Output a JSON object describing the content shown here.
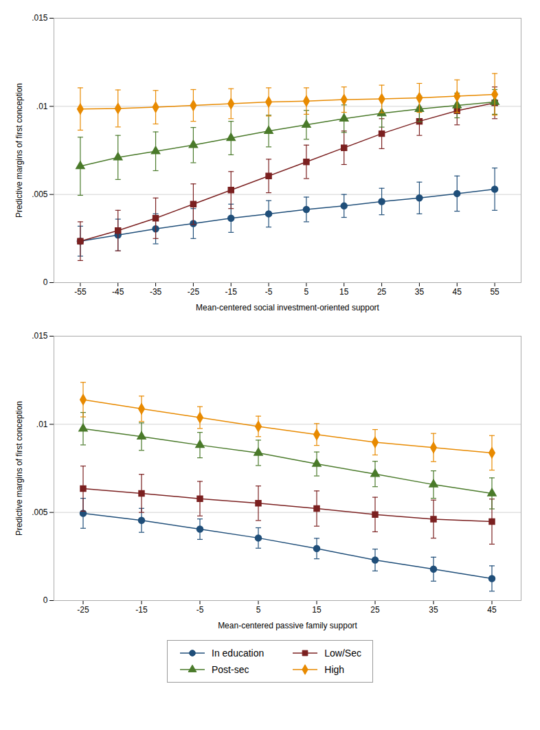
{
  "chart_data": [
    {
      "type": "line",
      "xlabel": "Mean-centered social investment-oriented support",
      "ylabel": "Predictive margins of first conception",
      "xlim": [
        -62,
        62
      ],
      "ylim": [
        0,
        0.015
      ],
      "xticks": [
        -55,
        -45,
        -35,
        -25,
        -15,
        -5,
        5,
        15,
        25,
        35,
        45,
        55
      ],
      "yticks": [
        0,
        {
          "value": 0.005,
          "label": ".005"
        },
        {
          "value": 0.01,
          "label": ".01"
        },
        {
          "value": 0.015,
          "label": ".015"
        }
      ],
      "grid": true,
      "legend": "bottom",
      "x": [
        -55,
        -45,
        -35,
        -25,
        -15,
        -5,
        5,
        15,
        25,
        35,
        45,
        55
      ],
      "series": [
        {
          "name": "In education",
          "color": "#1f4e79",
          "marker": "circle",
          "values": [
            0.00235,
            0.0027,
            0.00305,
            0.00335,
            0.00365,
            0.0039,
            0.00415,
            0.00435,
            0.0046,
            0.0048,
            0.00505,
            0.0053
          ],
          "yerr_lo": [
            0.00085,
            0.0009,
            0.00085,
            0.00085,
            0.0008,
            0.00075,
            0.0007,
            0.00065,
            0.00075,
            0.0009,
            0.001,
            0.0012
          ],
          "yerr_hi": [
            0.00085,
            0.0009,
            0.00085,
            0.00085,
            0.0008,
            0.00075,
            0.0007,
            0.00065,
            0.00075,
            0.0009,
            0.001,
            0.0012
          ]
        },
        {
          "name": "Low/Sec",
          "color": "#7b2020",
          "marker": "square",
          "values": [
            0.00235,
            0.00295,
            0.00365,
            0.00445,
            0.00525,
            0.00605,
            0.00685,
            0.00765,
            0.00845,
            0.00915,
            0.00975,
            0.0102
          ],
          "yerr_lo": [
            0.0011,
            0.00115,
            0.00115,
            0.00115,
            0.00105,
            0.00095,
            0.00095,
            0.00095,
            0.00085,
            0.0008,
            0.0008,
            0.0009
          ],
          "yerr_hi": [
            0.0011,
            0.00115,
            0.00115,
            0.00115,
            0.00105,
            0.00095,
            0.00095,
            0.00095,
            0.00085,
            0.0008,
            0.0008,
            0.0009
          ]
        },
        {
          "name": "Post-sec",
          "color": "#4a7a2a",
          "marker": "triangle",
          "values": [
            0.0066,
            0.0071,
            0.00745,
            0.0078,
            0.0082,
            0.0086,
            0.00895,
            0.0093,
            0.0096,
            0.00985,
            0.01005,
            0.01025
          ],
          "yerr_lo": [
            0.00165,
            0.00125,
            0.0011,
            0.001,
            0.00095,
            0.0009,
            0.00082,
            0.00078,
            0.00078,
            0.00073,
            0.0007,
            0.0007
          ],
          "yerr_hi": [
            0.00165,
            0.00125,
            0.0011,
            0.001,
            0.00095,
            0.0009,
            0.00082,
            0.00078,
            0.00078,
            0.00073,
            0.0007,
            0.0007
          ]
        },
        {
          "name": "High",
          "color": "#e88a00",
          "marker": "diamond",
          "values": [
            0.00985,
            0.00988,
            0.00995,
            0.01005,
            0.01015,
            0.01025,
            0.0103,
            0.01038,
            0.01042,
            0.01048,
            0.01058,
            0.01068
          ],
          "yerr_lo": [
            0.0012,
            0.00105,
            0.00095,
            0.0009,
            0.00085,
            0.0008,
            0.00075,
            0.00072,
            0.00078,
            0.00082,
            0.00092,
            0.00118
          ],
          "yerr_hi": [
            0.0012,
            0.00105,
            0.00095,
            0.0009,
            0.00085,
            0.0008,
            0.00075,
            0.00072,
            0.00078,
            0.00082,
            0.00092,
            0.00118
          ]
        }
      ]
    },
    {
      "type": "line",
      "xlabel": "Mean-centered passive family support",
      "ylabel": "Predictive margins of first conception",
      "xlim": [
        -30,
        50
      ],
      "ylim": [
        0,
        0.015
      ],
      "xticks": [
        -25,
        -15,
        -5,
        5,
        15,
        25,
        35,
        45
      ],
      "yticks": [
        0,
        {
          "value": 0.005,
          "label": ".005"
        },
        {
          "value": 0.01,
          "label": ".01"
        },
        {
          "value": 0.015,
          "label": ".015"
        }
      ],
      "grid": true,
      "legend": "bottom",
      "x": [
        -25,
        -15,
        -5,
        5,
        15,
        25,
        35,
        45
      ],
      "series": [
        {
          "name": "In education",
          "color": "#1f4e79",
          "marker": "circle",
          "values": [
            0.00495,
            0.00455,
            0.00405,
            0.00355,
            0.00295,
            0.0023,
            0.00178,
            0.00125
          ],
          "yerr_lo": [
            0.00085,
            0.00068,
            0.00058,
            0.00058,
            0.00058,
            0.00062,
            0.00068,
            0.00072
          ],
          "yerr_hi": [
            0.00085,
            0.00068,
            0.00058,
            0.00058,
            0.00058,
            0.00062,
            0.00068,
            0.00072
          ]
        },
        {
          "name": "Low/Sec",
          "color": "#7b2020",
          "marker": "square",
          "values": [
            0.00635,
            0.00608,
            0.00578,
            0.00552,
            0.00522,
            0.00488,
            0.00462,
            0.00448
          ],
          "yerr_lo": [
            0.00128,
            0.00108,
            0.00098,
            0.00098,
            0.001,
            0.00098,
            0.00108,
            0.00128
          ],
          "yerr_hi": [
            0.00128,
            0.00108,
            0.00098,
            0.00098,
            0.001,
            0.00098,
            0.00108,
            0.00128
          ]
        },
        {
          "name": "Post-sec",
          "color": "#4a7a2a",
          "marker": "triangle",
          "values": [
            0.00975,
            0.0093,
            0.00882,
            0.00838,
            0.00775,
            0.00718,
            0.00658,
            0.00608
          ],
          "yerr_lo": [
            0.00092,
            0.00078,
            0.00072,
            0.00072,
            0.00068,
            0.00072,
            0.00078,
            0.00088
          ],
          "yerr_hi": [
            0.00092,
            0.00078,
            0.00072,
            0.00072,
            0.00068,
            0.00072,
            0.00078,
            0.00088
          ]
        },
        {
          "name": "High",
          "color": "#e88a00",
          "marker": "diamond",
          "values": [
            0.0114,
            0.01088,
            0.01038,
            0.00988,
            0.00942,
            0.00898,
            0.00868,
            0.00838
          ],
          "yerr_lo": [
            0.00098,
            0.00072,
            0.00062,
            0.00058,
            0.00062,
            0.00072,
            0.0008,
            0.00098
          ],
          "yerr_hi": [
            0.00098,
            0.00072,
            0.00062,
            0.00058,
            0.00062,
            0.00072,
            0.0008,
            0.00098
          ]
        }
      ]
    }
  ]
}
